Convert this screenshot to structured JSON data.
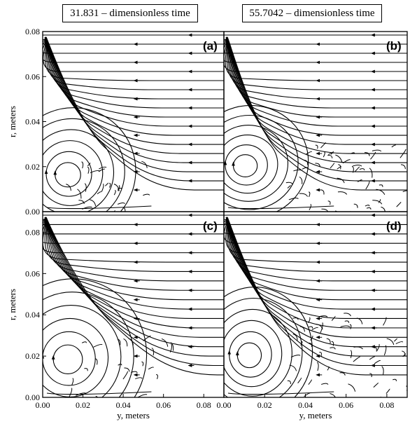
{
  "header": {
    "left_title": "31.831 – dimensionless time",
    "right_title": "55.7042 – dimensionless time"
  },
  "chart_data": [
    {
      "type": "streamplot",
      "panel": "(a)",
      "time": "31.831",
      "xlim": [
        0,
        0.09
      ],
      "ylim": [
        0,
        0.08
      ],
      "ylabel": "r, meters",
      "yticks": [
        "0.00",
        "0.02",
        "0.04",
        "0.06",
        "0.08"
      ],
      "vortex": {
        "center": [
          0.012,
          0.016
        ],
        "extent_x": 0.055,
        "extent_y": 0.045
      },
      "flow_direction": "right-to-left"
    },
    {
      "type": "streamplot",
      "panel": "(b)",
      "time": "55.7042",
      "xlim": [
        0,
        0.09
      ],
      "ylim": [
        0,
        0.08
      ],
      "vortex": {
        "center": [
          0.01,
          0.02
        ],
        "extent_x": 0.05,
        "extent_y": 0.04
      },
      "secondary_region": {
        "x_range": [
          0.03,
          0.09
        ],
        "y_range": [
          0,
          0.03
        ]
      },
      "flow_direction": "right-to-left"
    },
    {
      "type": "streamplot",
      "panel": "(c)",
      "time": "31.831",
      "xlim": [
        0,
        0.09
      ],
      "ylim": [
        0,
        0.09
      ],
      "xlabel": "y, meters",
      "ylabel": "r, meters",
      "xticks": [
        "0.00",
        "0.02",
        "0.04",
        "0.06",
        "0.08"
      ],
      "yticks": [
        "0.00",
        "0.02",
        "0.04",
        "0.06",
        "0.08"
      ],
      "vortex": {
        "center": [
          0.012,
          0.018
        ],
        "extent_x": 0.065,
        "extent_y": 0.06
      },
      "flow_direction": "right-to-left"
    },
    {
      "type": "streamplot",
      "panel": "(d)",
      "time": "55.7042",
      "xlim": [
        0,
        0.09
      ],
      "ylim": [
        0,
        0.09
      ],
      "xlabel": "y, meters",
      "xticks": [
        "0.00",
        "0.02",
        "0.04",
        "0.06",
        "0.08"
      ],
      "vortex": {
        "center": [
          0.012,
          0.02
        ],
        "extent_x": 0.05,
        "extent_y": 0.05
      },
      "secondary_region": {
        "x_range": [
          0.03,
          0.09
        ],
        "y_range": [
          0,
          0.04
        ]
      },
      "flow_direction": "right-to-left"
    }
  ]
}
